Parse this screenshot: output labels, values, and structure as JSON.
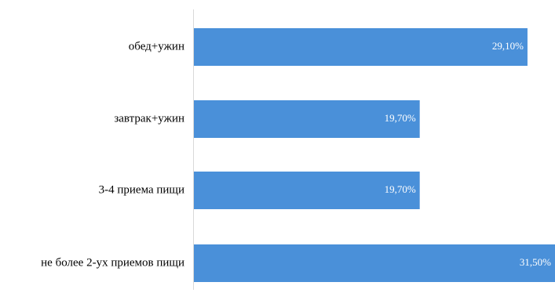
{
  "chart_data": {
    "type": "bar",
    "orientation": "horizontal",
    "categories": [
      "обед+ужин",
      "завтрак+ужин",
      "3-4 приема пищи",
      "не более 2-ух приемов пищи"
    ],
    "values": [
      29.1,
      19.7,
      19.7,
      31.5
    ],
    "data_labels": [
      "29,10%",
      "19,70%",
      "19,70%",
      "31,50%"
    ],
    "value_unit": "%",
    "xlim": [
      0,
      31.5
    ],
    "grid": false,
    "legend": "none",
    "title": "",
    "xlabel": "",
    "ylabel": "",
    "colors": {
      "bar": "#4a90d9",
      "axis": "#d9d9d9",
      "category_text": "#000000",
      "data_label_text": "#ffffff"
    }
  }
}
